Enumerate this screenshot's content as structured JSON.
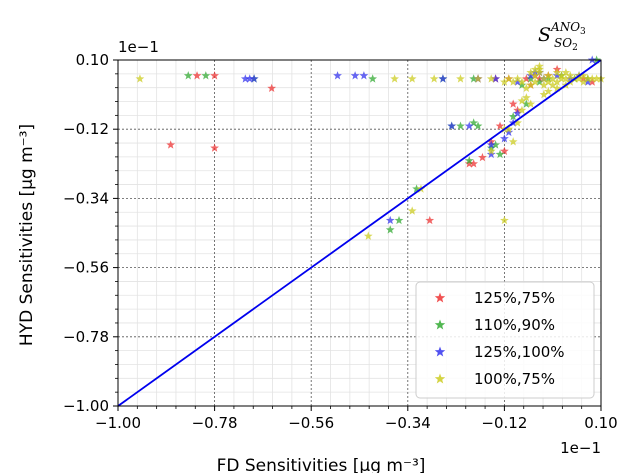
{
  "chart_data": {
    "type": "scatter",
    "xlabel": "FD Sensitivities [μg m⁻³]",
    "ylabel": "HYD Sensitivities [μg m⁻³]",
    "annotation": {
      "base": "S",
      "sup": "ANO",
      "sup_sub": "3",
      "sub": "SO",
      "sub_sub": "2"
    },
    "x_multiplier": "1e−1",
    "y_multiplier": "1e−1",
    "xlim": [
      -1.0,
      0.1
    ],
    "ylim": [
      -1.0,
      0.1
    ],
    "xticks": [
      -1.0,
      -0.78,
      -0.56,
      -0.34,
      -0.12,
      0.1
    ],
    "yticks": [
      -1.0,
      -0.78,
      -0.56,
      -0.34,
      -0.12,
      0.1
    ],
    "xtick_labels": [
      "−1.00",
      "−0.78",
      "−0.56",
      "−0.34",
      "−0.12",
      "0.10"
    ],
    "ytick_labels": [
      "−1.00",
      "−0.78",
      "−0.56",
      "−0.34",
      "−0.12",
      "0.10"
    ],
    "grid": true,
    "legend_position": "lower right",
    "reference_line": {
      "type": "y=x",
      "color": "#0000ee"
    },
    "series": [
      {
        "name": "125%,75%",
        "color": "#ee3333",
        "points": [
          [
            -0.78,
            0.05
          ],
          [
            -0.82,
            0.05
          ],
          [
            -0.65,
            0.01
          ],
          [
            -0.88,
            -0.17
          ],
          [
            -0.78,
            -0.18
          ],
          [
            -0.29,
            -0.41
          ],
          [
            -0.19,
            -0.23
          ],
          [
            -0.2,
            -0.23
          ],
          [
            -0.17,
            -0.21
          ],
          [
            -0.12,
            -0.19
          ],
          [
            -0.06,
            0.02
          ],
          [
            -0.04,
            0.04
          ],
          [
            -0.07,
            0.04
          ],
          [
            -0.11,
            0.04
          ],
          [
            -0.14,
            0.04
          ],
          [
            -0.18,
            0.04
          ],
          [
            -0.1,
            -0.04
          ],
          [
            -0.09,
            -0.06
          ],
          [
            -0.13,
            -0.11
          ],
          [
            -0.15,
            -0.16
          ],
          [
            -0.05,
            0.05
          ],
          [
            0.0,
            0.07
          ],
          [
            -0.02,
            0.05
          ],
          [
            0.06,
            0.04
          ],
          [
            0.08,
            0.03
          ]
        ]
      },
      {
        "name": "110%,90%",
        "color": "#33aa33",
        "points": [
          [
            -0.84,
            0.05
          ],
          [
            -0.8,
            0.05
          ],
          [
            -0.69,
            0.04
          ],
          [
            -0.42,
            0.04
          ],
          [
            -0.38,
            -0.44
          ],
          [
            -0.36,
            -0.41
          ],
          [
            -0.32,
            -0.31
          ],
          [
            -0.22,
            -0.11
          ],
          [
            -0.19,
            -0.1
          ],
          [
            -0.18,
            -0.11
          ],
          [
            -0.19,
            0.04
          ],
          [
            -0.26,
            0.04
          ],
          [
            -0.24,
            -0.11
          ],
          [
            -0.2,
            -0.22
          ],
          [
            -0.13,
            -0.2
          ],
          [
            -0.15,
            -0.18
          ],
          [
            -0.14,
            -0.17
          ],
          [
            -0.08,
            0.02
          ],
          [
            -0.06,
            0.04
          ],
          [
            -0.04,
            0.03
          ],
          [
            -0.07,
            -0.04
          ],
          [
            -0.1,
            -0.08
          ],
          [
            -0.02,
            0.04
          ],
          [
            0.01,
            0.05
          ],
          [
            0.04,
            0.04
          ],
          [
            0.07,
            0.04
          ],
          [
            0.09,
            0.1
          ]
        ]
      },
      {
        "name": "125%,100%",
        "color": "#3333ee",
        "points": [
          [
            -0.7,
            0.04
          ],
          [
            -0.71,
            0.04
          ],
          [
            -0.69,
            0.04
          ],
          [
            -0.5,
            0.05
          ],
          [
            -0.46,
            0.05
          ],
          [
            -0.44,
            0.05
          ],
          [
            -0.38,
            -0.41
          ],
          [
            -0.26,
            0.04
          ],
          [
            -0.24,
            -0.11
          ],
          [
            -0.2,
            -0.11
          ],
          [
            -0.18,
            0.04
          ],
          [
            -0.15,
            -0.2
          ],
          [
            -0.15,
            -0.17
          ],
          [
            -0.1,
            -0.1
          ],
          [
            -0.09,
            -0.07
          ],
          [
            -0.11,
            -0.13
          ],
          [
            -0.12,
            -0.15
          ],
          [
            -0.09,
            0.03
          ],
          [
            -0.06,
            0.05
          ],
          [
            -0.04,
            0.06
          ],
          [
            -0.03,
            0.04
          ],
          [
            0.0,
            0.05
          ],
          [
            0.03,
            0.04
          ],
          [
            0.05,
            0.05
          ],
          [
            0.07,
            0.03
          ],
          [
            0.08,
            0.1
          ],
          [
            -0.14,
            0.04
          ],
          [
            -0.05,
            0.06
          ]
        ]
      },
      {
        "name": "100%,75%",
        "color": "#cccc22",
        "points": [
          [
            -0.95,
            0.04
          ],
          [
            -0.43,
            -0.46
          ],
          [
            -0.33,
            -0.38
          ],
          [
            -0.31,
            -0.31
          ],
          [
            -0.37,
            0.04
          ],
          [
            -0.33,
            0.04
          ],
          [
            -0.28,
            0.04
          ],
          [
            -0.22,
            0.04
          ],
          [
            -0.18,
            0.04
          ],
          [
            -0.15,
            0.04
          ],
          [
            -0.12,
            -0.41
          ],
          [
            -0.11,
            -0.12
          ],
          [
            -0.12,
            -0.12
          ],
          [
            -0.15,
            -0.19
          ],
          [
            -0.1,
            -0.16
          ],
          [
            -0.09,
            -0.1
          ],
          [
            -0.08,
            -0.06
          ],
          [
            -0.08,
            -0.03
          ],
          [
            -0.06,
            -0.04
          ],
          [
            -0.07,
            0.01
          ],
          [
            -0.06,
            0.02
          ],
          [
            -0.05,
            0.03
          ],
          [
            -0.05,
            0.05
          ],
          [
            -0.04,
            0.06
          ],
          [
            -0.04,
            0.07
          ],
          [
            -0.03,
            0.04
          ],
          [
            -0.03,
            0.02
          ],
          [
            -0.02,
            0.05
          ],
          [
            -0.02,
            0.03
          ],
          [
            -0.01,
            0.04
          ],
          [
            -0.01,
            0.02
          ],
          [
            0.0,
            0.06
          ],
          [
            0.0,
            0.03
          ],
          [
            0.01,
            0.04
          ],
          [
            0.01,
            0.05
          ],
          [
            0.02,
            0.04
          ],
          [
            0.02,
            0.06
          ],
          [
            0.03,
            0.03
          ],
          [
            0.03,
            0.05
          ],
          [
            0.04,
            0.04
          ],
          [
            0.05,
            0.04
          ],
          [
            0.05,
            0.05
          ],
          [
            0.06,
            0.03
          ],
          [
            0.06,
            0.05
          ],
          [
            0.07,
            0.04
          ],
          [
            0.08,
            0.04
          ],
          [
            0.09,
            0.04
          ],
          [
            0.1,
            0.04
          ],
          [
            -0.08,
            0.03
          ],
          [
            -0.09,
            0.04
          ],
          [
            -0.1,
            0.03
          ],
          [
            -0.11,
            0.04
          ],
          [
            -0.12,
            0.03
          ],
          [
            -0.07,
            -0.02
          ],
          [
            -0.03,
            -0.01
          ],
          [
            -0.02,
            0.0
          ],
          [
            0.0,
            0.01
          ],
          [
            -0.06,
            0.06
          ],
          [
            -0.05,
            0.07
          ],
          [
            -0.04,
            0.08
          ],
          [
            0.02,
            0.02
          ]
        ]
      }
    ]
  }
}
